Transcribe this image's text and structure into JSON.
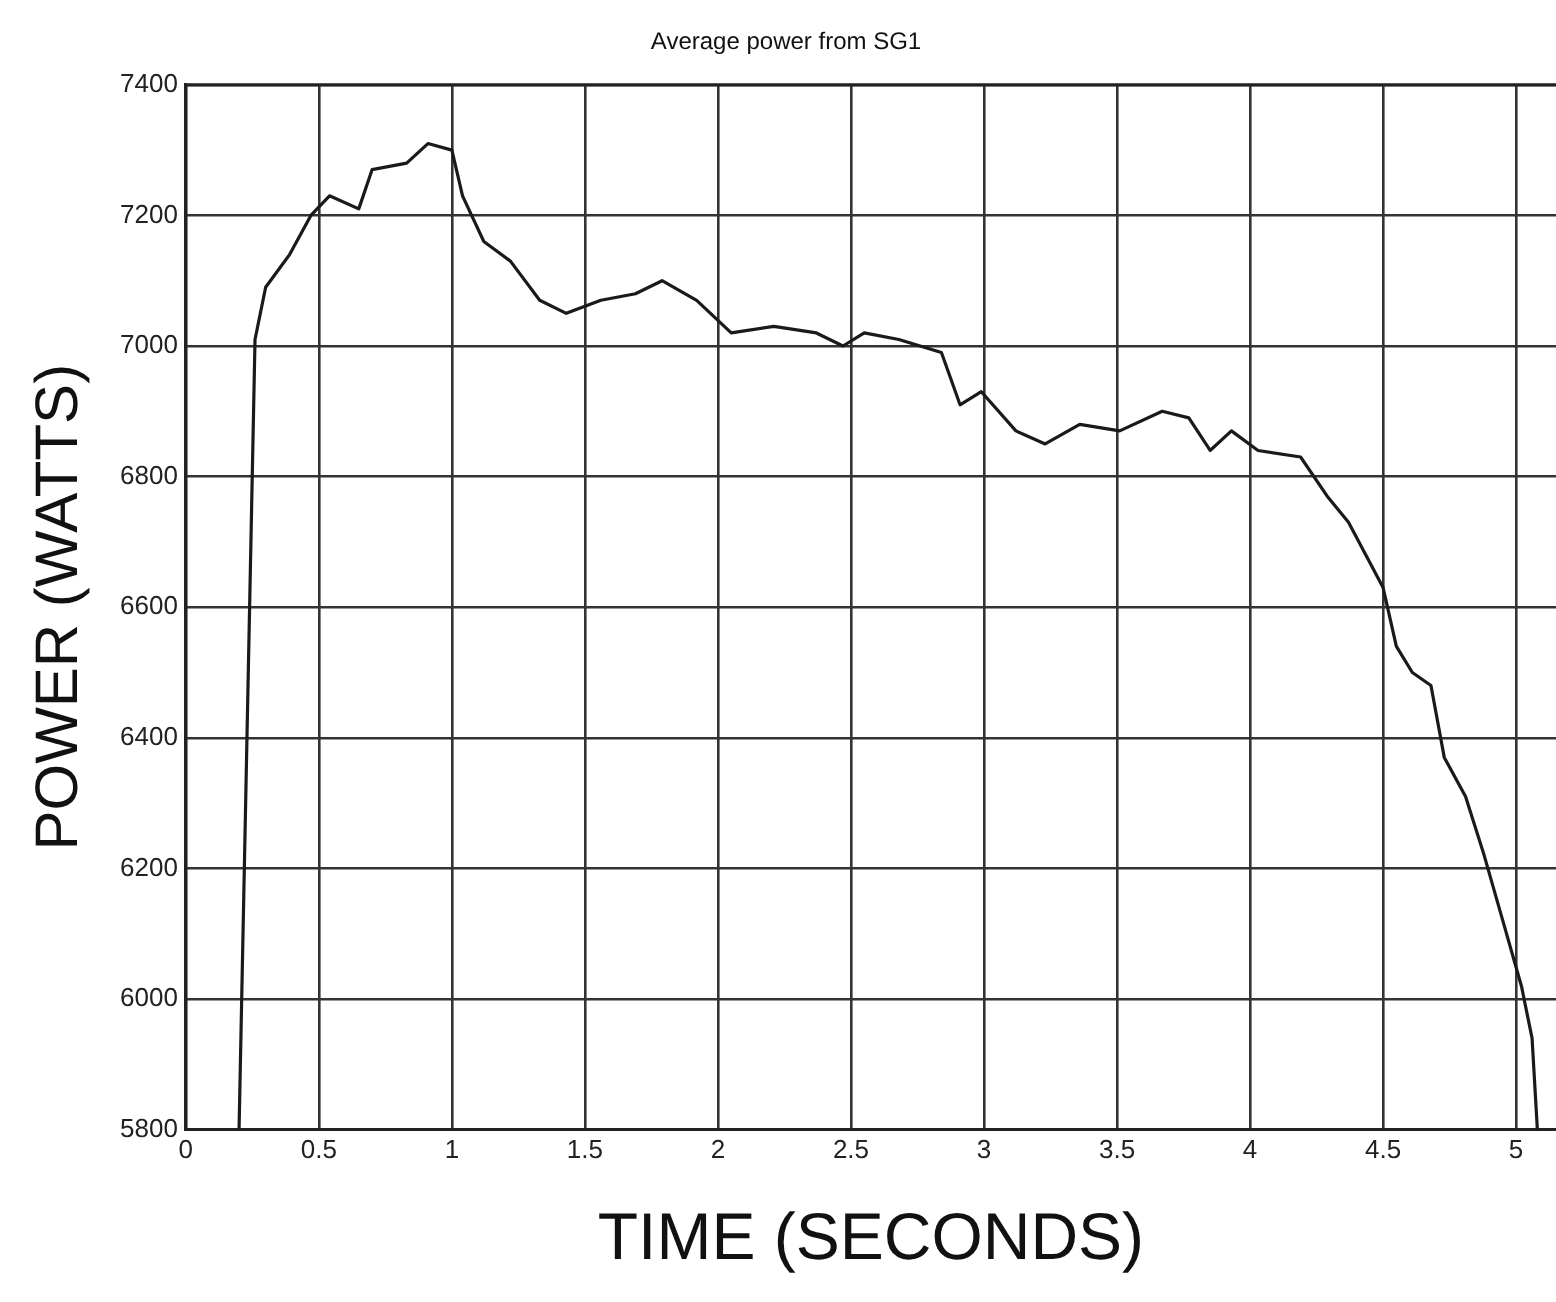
{
  "chart_data": {
    "type": "line",
    "title": "Average power from SG1",
    "xlabel": "TIME (SECONDS)",
    "ylabel": "POWER (WATTS)",
    "x": [
      0.2,
      0.26,
      0.3,
      0.39,
      0.47,
      0.54,
      0.65,
      0.7,
      0.83,
      0.91,
      1.0,
      1.04,
      1.12,
      1.22,
      1.33,
      1.43,
      1.56,
      1.69,
      1.79,
      1.92,
      2.05,
      2.21,
      2.37,
      2.47,
      2.55,
      2.68,
      2.84,
      2.91,
      2.99,
      3.12,
      3.23,
      3.36,
      3.51,
      3.67,
      3.77,
      3.85,
      3.93,
      4.03,
      4.19,
      4.29,
      4.37,
      4.5,
      4.55,
      4.61,
      4.68,
      4.73,
      4.81,
      4.88,
      4.95,
      5.02,
      5.06,
      5.08
    ],
    "series": [
      {
        "color": "#1a1a1a",
        "values": [
          5800,
          7010,
          7090,
          7140,
          7200,
          7230,
          7210,
          7270,
          7280,
          7310,
          7300,
          7230,
          7160,
          7130,
          7070,
          7050,
          7070,
          7080,
          7100,
          7070,
          7020,
          7030,
          7020,
          7000,
          7020,
          7010,
          6990,
          6910,
          6930,
          6870,
          6850,
          6880,
          6870,
          6900,
          6890,
          6840,
          6870,
          6840,
          6830,
          6770,
          6730,
          6630,
          6540,
          6500,
          6480,
          6370,
          6310,
          6220,
          6120,
          6020,
          5940,
          5800
        ]
      }
    ],
    "xlim": [
      0,
      5.15
    ],
    "xticks": [
      0,
      {
        "value": 0.5,
        "label": "0.5"
      },
      1,
      {
        "value": 1.5,
        "label": "1.5"
      },
      2,
      {
        "value": 2.5,
        "label": "2.5"
      },
      3,
      {
        "value": 3.5,
        "label": "3.5"
      },
      4,
      {
        "value": 4.5,
        "label": "4.5"
      },
      5
    ],
    "ylim": [
      5800,
      7400
    ],
    "yticks": [
      5800,
      6000,
      6200,
      6400,
      6600,
      6800,
      7000,
      7200,
      7400
    ],
    "grid": true,
    "legend": false,
    "marker": "none",
    "line_style": "solid"
  }
}
